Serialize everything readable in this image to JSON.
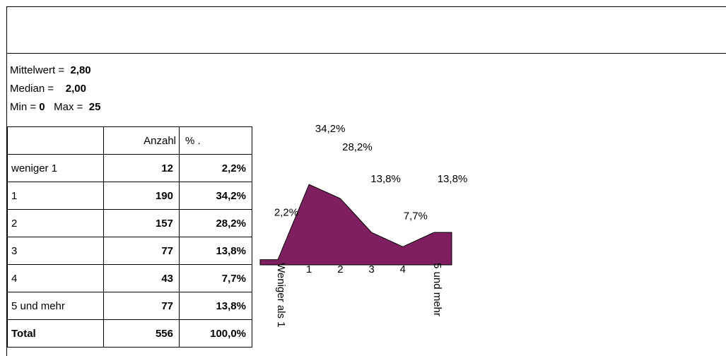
{
  "stats": {
    "mean_label": "Mittelwert =",
    "mean": "2,80",
    "median_label": "Median =",
    "median": "2,00",
    "min_label": "Min =",
    "min": "0",
    "max_label": "Max =",
    "max": "25"
  },
  "table": {
    "header": [
      "Anzahl",
      "% ."
    ],
    "rows": [
      [
        "weniger 1",
        "12",
        "2,2%"
      ],
      [
        "1",
        "190",
        "34,2%"
      ],
      [
        "2",
        "157",
        "28,2%"
      ],
      [
        "3",
        "77",
        "13,8%"
      ],
      [
        "4",
        "43",
        "7,7%"
      ],
      [
        "5 und mehr",
        "77",
        "13,8%"
      ],
      [
        "Total",
        "556",
        "100,0%"
      ]
    ]
  },
  "chart_data": {
    "type": "area",
    "categories": [
      "Weniger als 1",
      "1",
      "2",
      "3",
      "4",
      "5 und mehr"
    ],
    "values": [
      2.2,
      34.2,
      28.2,
      13.8,
      7.7,
      13.8
    ],
    "value_labels": [
      "2,2%",
      "34,2%",
      "28,2%",
      "13,8%",
      "7,7%",
      "13,8%"
    ],
    "color": "#7f1f5f"
  }
}
